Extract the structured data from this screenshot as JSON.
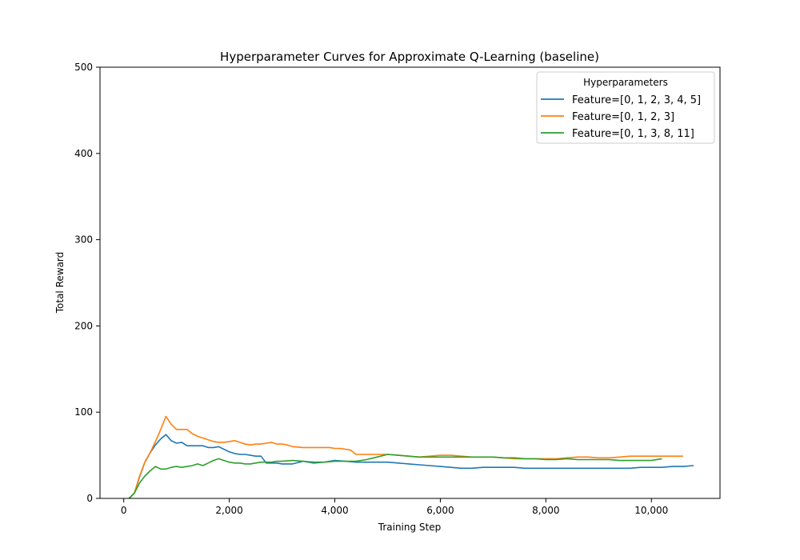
{
  "chart_data": {
    "type": "line",
    "title": "Hyperparameter Curves for Approximate Q-Learning (baseline)",
    "xlabel": "Training Step",
    "ylabel": "Total Reward",
    "xlim": [
      -450,
      11300
    ],
    "ylim": [
      0,
      500
    ],
    "xticks": [
      0,
      2000,
      4000,
      6000,
      8000,
      10000
    ],
    "xtick_labels": [
      "0",
      "2,000",
      "4,000",
      "6,000",
      "8,000",
      "10,000"
    ],
    "yticks": [
      0,
      100,
      200,
      300,
      400,
      500
    ],
    "ytick_labels": [
      "0",
      "100",
      "200",
      "300",
      "400",
      "500"
    ],
    "grid": false,
    "legend": {
      "title": "Hyperparameters",
      "placement": "top-right"
    },
    "series": [
      {
        "name": "Feature=[0, 1, 2, 3, 4, 5]",
        "color": "#1f77b4",
        "x": [
          100,
          200,
          300,
          400,
          500,
          600,
          700,
          800,
          900,
          1000,
          1100,
          1200,
          1300,
          1400,
          1500,
          1600,
          1700,
          1800,
          1900,
          2000,
          2100,
          2200,
          2300,
          2400,
          2500,
          2600,
          2700,
          2800,
          2900,
          3000,
          3200,
          3400,
          3600,
          3800,
          4000,
          4200,
          4400,
          4600,
          4800,
          5000,
          5200,
          5400,
          5600,
          5800,
          6000,
          6200,
          6400,
          6600,
          6800,
          7000,
          7200,
          7400,
          7600,
          7800,
          8000,
          8200,
          8400,
          8600,
          8800,
          9000,
          9200,
          9400,
          9600,
          9800,
          10000,
          10200,
          10400,
          10600,
          10800
        ],
        "y": [
          0,
          6,
          25,
          42,
          53,
          62,
          69,
          74,
          67,
          64,
          65,
          61,
          61,
          61,
          61,
          59,
          59,
          60,
          57,
          54,
          52,
          51,
          51,
          50,
          49,
          49,
          41,
          41,
          41,
          40,
          40,
          43,
          41,
          42,
          44,
          43,
          42,
          42,
          42,
          42,
          41,
          40,
          39,
          38,
          37,
          36,
          35,
          35,
          36,
          36,
          36,
          36,
          35,
          35,
          35,
          35,
          35,
          35,
          35,
          35,
          35,
          35,
          35,
          36,
          36,
          36,
          37,
          37,
          38
        ]
      },
      {
        "name": "Feature=[0, 1, 2, 3]",
        "color": "#ff7f0e",
        "x": [
          100,
          200,
          300,
          400,
          500,
          600,
          700,
          800,
          900,
          1000,
          1100,
          1200,
          1300,
          1400,
          1500,
          1600,
          1700,
          1800,
          1900,
          2000,
          2100,
          2200,
          2300,
          2400,
          2500,
          2600,
          2700,
          2800,
          2900,
          3000,
          3100,
          3200,
          3400,
          3600,
          3800,
          3900,
          4000,
          4100,
          4200,
          4300,
          4400,
          4600,
          4800,
          5000,
          5200,
          5400,
          5600,
          5800,
          6000,
          6200,
          6400,
          6600,
          6800,
          7000,
          7200,
          7400,
          7600,
          7800,
          8000,
          8200,
          8400,
          8600,
          8800,
          9000,
          9200,
          9400,
          9600,
          9800,
          10000,
          10200,
          10400,
          10600
        ],
        "y": [
          0,
          6,
          26,
          42,
          53,
          66,
          80,
          95,
          86,
          80,
          80,
          80,
          75,
          72,
          70,
          68,
          66,
          65,
          65,
          66,
          67,
          65,
          63,
          62,
          63,
          63,
          64,
          65,
          63,
          63,
          62,
          60,
          59,
          59,
          59,
          59,
          58,
          58,
          57,
          56,
          51,
          51,
          51,
          51,
          50,
          49,
          48,
          49,
          50,
          50,
          49,
          48,
          48,
          48,
          47,
          46,
          46,
          46,
          46,
          46,
          47,
          48,
          48,
          47,
          47,
          48,
          49,
          49,
          49,
          49,
          49,
          49
        ]
      },
      {
        "name": "Feature=[0, 1, 3, 8, 11]",
        "color": "#2ca02c",
        "x": [
          100,
          200,
          300,
          400,
          500,
          600,
          700,
          800,
          900,
          1000,
          1100,
          1200,
          1300,
          1400,
          1500,
          1600,
          1700,
          1800,
          1900,
          2000,
          2100,
          2200,
          2300,
          2400,
          2500,
          2600,
          2700,
          2800,
          2900,
          3000,
          3200,
          3400,
          3600,
          3800,
          4000,
          4200,
          4400,
          4600,
          4800,
          5000,
          5200,
          5400,
          5600,
          5800,
          6000,
          6200,
          6400,
          6600,
          6800,
          7000,
          7200,
          7400,
          7600,
          7800,
          8000,
          8200,
          8400,
          8600,
          8800,
          9000,
          9200,
          9400,
          9600,
          9800,
          10000,
          10200
        ],
        "y": [
          0,
          6,
          18,
          26,
          32,
          37,
          34,
          34,
          36,
          37,
          36,
          37,
          38,
          40,
          38,
          41,
          44,
          46,
          44,
          42,
          41,
          41,
          40,
          40,
          41,
          42,
          42,
          42,
          43,
          43,
          44,
          43,
          42,
          42,
          43,
          43,
          43,
          45,
          48,
          51,
          50,
          49,
          48,
          48,
          48,
          48,
          48,
          48,
          48,
          48,
          47,
          47,
          46,
          46,
          45,
          45,
          46,
          45,
          45,
          45,
          45,
          44,
          44,
          44,
          44,
          46
        ]
      }
    ]
  }
}
